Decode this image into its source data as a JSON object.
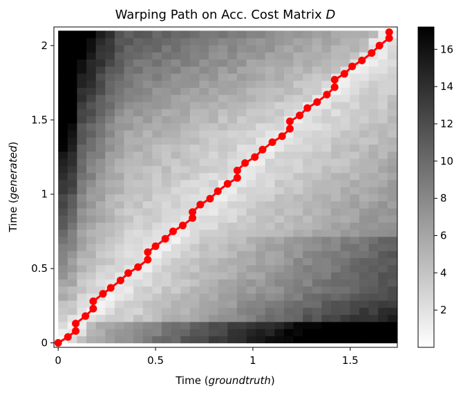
{
  "chart_data": {
    "type": "heatmap",
    "title": "Warping Path on Acc. Cost Matrix D",
    "title_parts": {
      "main": "Warping Path on Acc. Cost Matrix ",
      "variable": "D"
    },
    "xlabel_parts": {
      "prefix": "Time (",
      "italic": "groundtruth",
      "suffix": ")"
    },
    "ylabel_parts": {
      "prefix": "Time (",
      "italic": "generated",
      "suffix": ")"
    },
    "x_range": [
      0,
      1.74
    ],
    "y_range": [
      0,
      2.1
    ],
    "x_ticks": [
      0,
      0.5,
      1,
      1.5
    ],
    "x_tick_labels": [
      "0",
      "0.5",
      "1",
      "1.5"
    ],
    "y_ticks": [
      0,
      0.5,
      1,
      1.5,
      2
    ],
    "y_tick_labels": [
      "0",
      "0.5",
      "1",
      "1.5",
      "2"
    ],
    "grid": false,
    "colormap": "gray_r",
    "colorbar": {
      "min": 0,
      "max": 17.2,
      "ticks": [
        2,
        4,
        6,
        8,
        10,
        12,
        14,
        16
      ],
      "tick_labels": [
        "2",
        "4",
        "6",
        "8",
        "10",
        "12",
        "14",
        "16"
      ]
    },
    "matrix_cells": {
      "cols": 36,
      "rows": 44
    },
    "path_series": {
      "name": "warping path",
      "color": "#ff0000",
      "points": [
        [
          0.0,
          0.0
        ],
        [
          0.05,
          0.04
        ],
        [
          0.09,
          0.08
        ],
        [
          0.09,
          0.13
        ],
        [
          0.14,
          0.18
        ],
        [
          0.18,
          0.23
        ],
        [
          0.18,
          0.28
        ],
        [
          0.23,
          0.33
        ],
        [
          0.27,
          0.37
        ],
        [
          0.32,
          0.42
        ],
        [
          0.36,
          0.47
        ],
        [
          0.41,
          0.51
        ],
        [
          0.46,
          0.56
        ],
        [
          0.46,
          0.61
        ],
        [
          0.5,
          0.65
        ],
        [
          0.55,
          0.7
        ],
        [
          0.59,
          0.75
        ],
        [
          0.64,
          0.79
        ],
        [
          0.69,
          0.84
        ],
        [
          0.69,
          0.88
        ],
        [
          0.73,
          0.93
        ],
        [
          0.78,
          0.97
        ],
        [
          0.82,
          1.02
        ],
        [
          0.87,
          1.07
        ],
        [
          0.92,
          1.11
        ],
        [
          0.92,
          1.16
        ],
        [
          0.96,
          1.21
        ],
        [
          1.01,
          1.25
        ],
        [
          1.05,
          1.3
        ],
        [
          1.1,
          1.35
        ],
        [
          1.15,
          1.39
        ],
        [
          1.19,
          1.44
        ],
        [
          1.19,
          1.49
        ],
        [
          1.24,
          1.53
        ],
        [
          1.28,
          1.58
        ],
        [
          1.33,
          1.62
        ],
        [
          1.38,
          1.67
        ],
        [
          1.42,
          1.72
        ],
        [
          1.42,
          1.77
        ],
        [
          1.47,
          1.81
        ],
        [
          1.51,
          1.86
        ],
        [
          1.56,
          1.9
        ],
        [
          1.61,
          1.95
        ],
        [
          1.65,
          2.0
        ],
        [
          1.7,
          2.05
        ],
        [
          1.7,
          2.09
        ]
      ]
    }
  }
}
